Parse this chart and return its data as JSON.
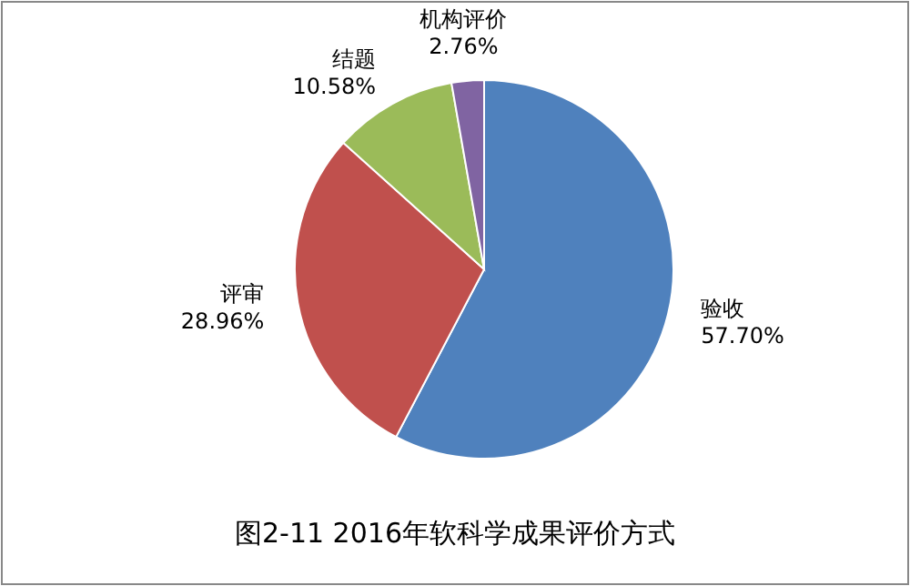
{
  "chart_data": {
    "type": "pie",
    "title": "图2-11 2016年软科学成果评价方式",
    "categories": [
      "验收",
      "评审",
      "结题",
      "机构评价"
    ],
    "values": [
      57.7,
      28.96,
      10.58,
      2.76
    ],
    "value_labels": [
      "57.70%",
      "28.96%",
      "10.58%",
      "2.76%"
    ],
    "colors": [
      "#4f81bd",
      "#c0504d",
      "#9bbb59",
      "#8064a2"
    ],
    "legend": false
  }
}
